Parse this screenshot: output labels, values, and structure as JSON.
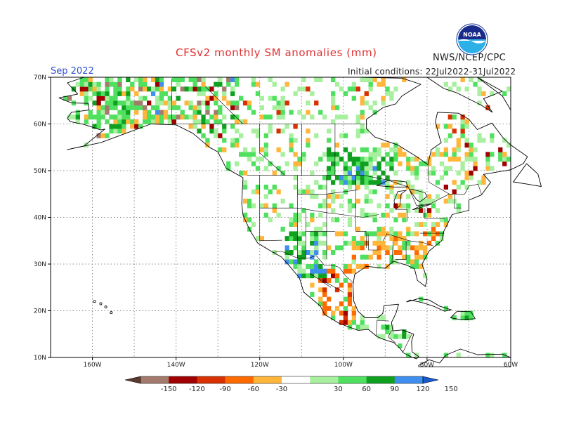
{
  "header": {
    "title": "CFSv2 monthly SM anomalies (mm)",
    "month": "Sep 2022",
    "agency": "NWS/NCEP/CPC",
    "initial_conditions": "Initial conditions: 22Jul2022-31Jul2022",
    "logo_text": "NOAA"
  },
  "map": {
    "lon_range": [
      -170,
      -60
    ],
    "lat_range": [
      10,
      70
    ],
    "lat_ticks": [
      "70N",
      "60N",
      "50N",
      "40N",
      "30N",
      "20N",
      "10N"
    ],
    "lon_ticks": [
      "160W",
      "140W",
      "120W",
      "100W",
      "80W",
      "60W"
    ],
    "grid": "dotted"
  },
  "colorbar": {
    "levels": [
      "-150",
      "-120",
      "-90",
      "-60",
      "-30",
      "30",
      "60",
      "90",
      "120",
      "150"
    ],
    "colors": [
      "#5a3a2e",
      "#a47a6c",
      "#a00000",
      "#d83000",
      "#ff6a00",
      "#ffb63a",
      "#ffffff",
      "#a8f0a0",
      "#50e060",
      "#10a020",
      "#3f8ff0",
      "#1a5ad0"
    ]
  }
}
